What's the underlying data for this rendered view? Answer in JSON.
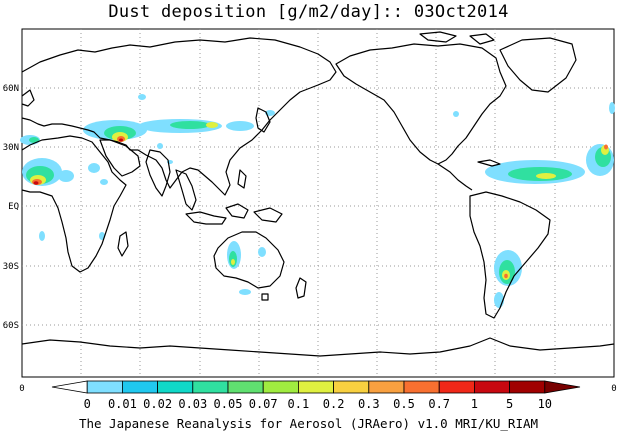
{
  "title": "Dust deposition [g/m2/day]:: 03Oct2014",
  "footer": "The Japanese Reanalysis for Aerosol (JRAero) v1.0 MRI/KU_RIAM",
  "map": {
    "lat_labels": [
      "60N",
      "30N",
      "EQ",
      "30S",
      "60S"
    ],
    "corner_labels": [
      "0",
      "0"
    ]
  },
  "colorbar": {
    "labels": [
      "0",
      "0.01",
      "0.02",
      "0.03",
      "0.05",
      "0.07",
      "0.1",
      "0.2",
      "0.3",
      "0.5",
      "0.7",
      "1",
      "5",
      "10"
    ],
    "colors": [
      "#ffffff",
      "#7fdfff",
      "#20c8ef",
      "#10d8c8",
      "#30e0a0",
      "#60e070",
      "#a0ec40",
      "#e0f040",
      "#f8d040",
      "#f8a040",
      "#f87030",
      "#f02818",
      "#c80810",
      "#a00000",
      "#780000"
    ]
  },
  "dust_colors": {
    "low": "#7fdfff",
    "mid": "#30e0a0",
    "midhi": "#e0f040",
    "high": "#f87030",
    "peak": "#c80810"
  }
}
